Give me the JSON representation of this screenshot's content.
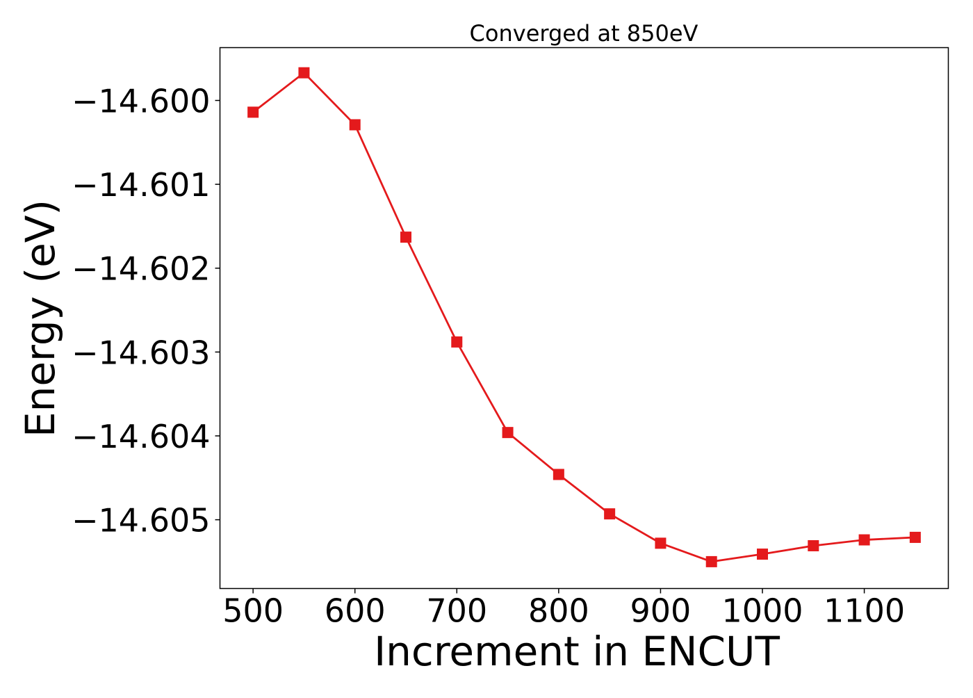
{
  "chart_data": {
    "type": "line",
    "title": "Converged at 850eV",
    "xlabel": "Increment in ENCUT",
    "ylabel": "Energy (eV)",
    "xlim": [
      467.5,
      1182.5
    ],
    "ylim": [
      -14.60582,
      -14.59937
    ],
    "xticks": [
      500,
      600,
      700,
      800,
      900,
      1000,
      1100
    ],
    "xtick_labels": [
      "500",
      "600",
      "700",
      "800",
      "900",
      "1000",
      "1100"
    ],
    "yticks": [
      -14.6,
      -14.601,
      -14.602,
      -14.603,
      -14.604,
      -14.605
    ],
    "ytick_labels": [
      "−14.600",
      "−14.601",
      "−14.602",
      "−14.603",
      "−14.604",
      "−14.605"
    ],
    "grid": false,
    "series": [
      {
        "color": "#e41a1c",
        "marker": "square",
        "x": [
          500,
          550,
          600,
          650,
          700,
          750,
          800,
          850,
          900,
          950,
          1000,
          1050,
          1100,
          1150
        ],
        "values": [
          -14.60014,
          -14.59967,
          -14.60029,
          -14.60163,
          -14.60288,
          -14.60396,
          -14.60446,
          -14.60493,
          -14.60528,
          -14.6055,
          -14.60541,
          -14.60531,
          -14.60524,
          -14.60521
        ]
      }
    ]
  }
}
